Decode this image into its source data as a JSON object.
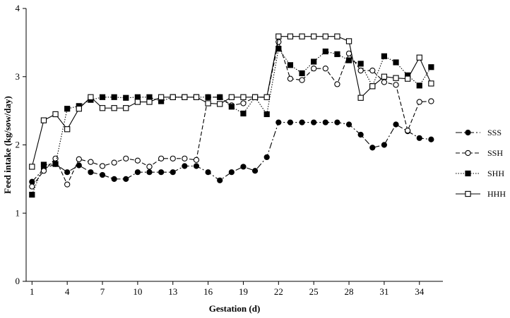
{
  "chart_data": {
    "type": "line",
    "xlabel": "Gestation (d)",
    "ylabel": "Feed intake (kg/sow/day)",
    "xlim": [
      0.5,
      36
    ],
    "ylim": [
      0,
      4
    ],
    "xticks": [
      1,
      4,
      7,
      10,
      13,
      16,
      19,
      22,
      25,
      28,
      31,
      34
    ],
    "yticks": [
      0,
      1,
      2,
      3,
      4
    ],
    "grid": false,
    "legend_position": "right",
    "x": [
      1,
      2,
      3,
      4,
      5,
      6,
      7,
      8,
      9,
      10,
      11,
      12,
      13,
      14,
      15,
      16,
      17,
      18,
      19,
      20,
      21,
      22,
      23,
      24,
      25,
      26,
      27,
      28,
      29,
      30,
      31,
      32,
      33,
      34,
      35
    ],
    "series": [
      {
        "name": "SSS",
        "marker": "filled-circle",
        "line": "dash-dot",
        "values": [
          1.46,
          1.65,
          1.72,
          1.6,
          1.7,
          1.6,
          1.56,
          1.5,
          1.5,
          1.6,
          1.6,
          1.6,
          1.6,
          1.69,
          1.69,
          1.6,
          1.48,
          1.6,
          1.68,
          1.62,
          1.82,
          2.33,
          2.33,
          2.33,
          2.33,
          2.33,
          2.33,
          2.3,
          2.15,
          1.96,
          2.0,
          2.3,
          2.2,
          2.1,
          2.08
        ]
      },
      {
        "name": "SSH",
        "marker": "open-circle",
        "line": "dashed",
        "values": [
          1.39,
          1.62,
          1.8,
          1.42,
          1.79,
          1.75,
          1.69,
          1.74,
          1.8,
          1.77,
          1.68,
          1.8,
          1.8,
          1.8,
          1.78,
          2.7,
          2.7,
          2.58,
          2.61,
          2.7,
          2.7,
          3.51,
          2.97,
          2.95,
          3.12,
          3.12,
          2.89,
          3.34,
          3.09,
          3.09,
          2.92,
          2.88,
          2.21,
          2.63,
          2.64
        ]
      },
      {
        "name": "SHH",
        "marker": "filled-square",
        "line": "dotted",
        "values": [
          1.27,
          1.71,
          1.72,
          2.53,
          2.57,
          2.66,
          2.7,
          2.7,
          2.69,
          2.7,
          2.7,
          2.64,
          2.7,
          2.7,
          2.7,
          2.7,
          2.7,
          2.56,
          2.46,
          2.7,
          2.45,
          3.41,
          3.17,
          3.05,
          3.22,
          3.37,
          3.33,
          3.24,
          3.19,
          2.86,
          3.3,
          3.21,
          3.02,
          2.87,
          3.14
        ]
      },
      {
        "name": "HHH",
        "marker": "open-square",
        "line": "solid",
        "values": [
          1.68,
          2.36,
          2.45,
          2.23,
          2.53,
          2.7,
          2.54,
          2.54,
          2.54,
          2.63,
          2.63,
          2.7,
          2.7,
          2.7,
          2.7,
          2.61,
          2.6,
          2.7,
          2.7,
          2.7,
          2.7,
          3.59,
          3.59,
          3.59,
          3.59,
          3.59,
          3.59,
          3.52,
          2.69,
          2.86,
          3.0,
          2.98,
          2.97,
          3.28,
          2.9
        ]
      }
    ]
  }
}
